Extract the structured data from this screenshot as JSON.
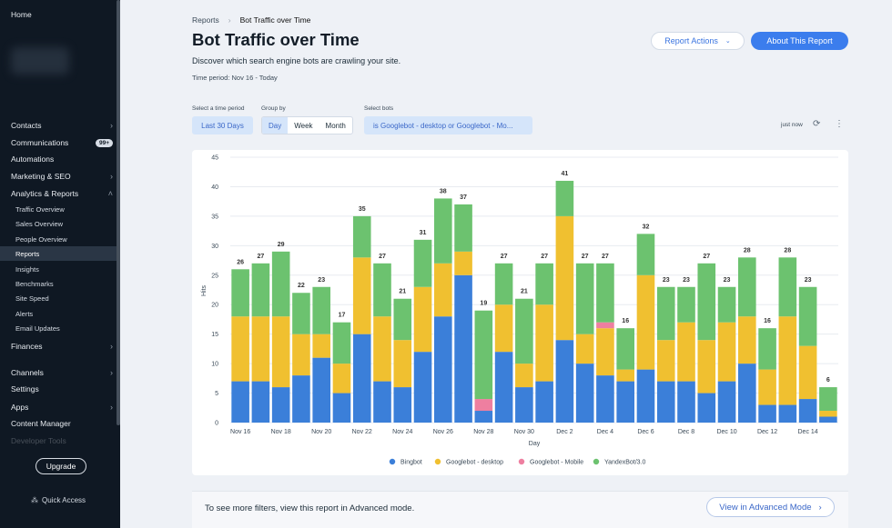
{
  "sidebar": {
    "home": "Home",
    "items": [
      {
        "label": "Contacts",
        "chevron": true
      },
      {
        "label": "Communications",
        "badge": "99+"
      },
      {
        "label": "Automations"
      },
      {
        "label": "Marketing & SEO",
        "chevron": true
      },
      {
        "label": "Analytics & Reports",
        "chevron": true,
        "expanded": true
      }
    ],
    "sub_items": [
      "Traffic Overview",
      "Sales Overview",
      "People Overview",
      "Reports",
      "Insights",
      "Benchmarks",
      "Site Speed",
      "Alerts",
      "Email Updates"
    ],
    "active_sub": "Reports",
    "items_after": [
      {
        "label": "Finances",
        "chevron": true
      },
      {
        "label": "Channels",
        "chevron": true
      },
      {
        "label": "Settings"
      },
      {
        "label": "Apps",
        "chevron": true
      },
      {
        "label": "Content Manager"
      },
      {
        "label": "Developer Tools"
      }
    ],
    "upgrade": "Upgrade",
    "quick_access": "Quick Access"
  },
  "breadcrumb": {
    "parent": "Reports",
    "current": "Bot Traffic over Time"
  },
  "header": {
    "title": "Bot Traffic over Time",
    "description": "Discover which search engine bots are crawling your site.",
    "period": "Time period: Nov 16 - Today",
    "report_actions": "Report Actions",
    "about": "About This Report"
  },
  "filters": {
    "time_label": "Select a time period",
    "time_value": "Last 30 Days",
    "group_label": "Group by",
    "group_options": [
      "Day",
      "Week",
      "Month"
    ],
    "group_selected": "Day",
    "bots_label": "Select bots",
    "bots_value": "is Googlebot - desktop or Googlebot - Mo...",
    "updated": "just now"
  },
  "chart_data": {
    "type": "bar",
    "stacked": true,
    "ylabel": "Hits",
    "xlabel": "Day",
    "ylim": [
      0,
      45
    ],
    "yticks": [
      0,
      5,
      10,
      15,
      20,
      25,
      30,
      35,
      40,
      45
    ],
    "categories": [
      "Nov 16",
      "Nov 17",
      "Nov 18",
      "Nov 19",
      "Nov 20",
      "Nov 21",
      "Nov 22",
      "Nov 23",
      "Nov 24",
      "Nov 25",
      "Nov 26",
      "Nov 27",
      "Nov 28",
      "Nov 29",
      "Nov 30",
      "Dec 1",
      "Dec 2",
      "Dec 3",
      "Dec 4",
      "Dec 5",
      "Dec 6",
      "Dec 7",
      "Dec 8",
      "Dec 9",
      "Dec 10",
      "Dec 11",
      "Dec 12",
      "Dec 13",
      "Dec 14",
      "Dec 15"
    ],
    "tick_labels": [
      "Nov 16",
      "Nov 18",
      "Nov 20",
      "Nov 22",
      "Nov 24",
      "Nov 26",
      "Nov 28",
      "Nov 30",
      "Dec 2",
      "Dec 4",
      "Dec 6",
      "Dec 8",
      "Dec 10",
      "Dec 12",
      "Dec 14"
    ],
    "totals": [
      26,
      27,
      29,
      22,
      23,
      17,
      35,
      27,
      21,
      31,
      38,
      37,
      19,
      27,
      21,
      27,
      41,
      27,
      27,
      16,
      32,
      23,
      23,
      27,
      23,
      28,
      16,
      28,
      23,
      6
    ],
    "series": [
      {
        "name": "Bingbot",
        "color": "#3b7fd9",
        "values": [
          7,
          7,
          6,
          8,
          11,
          5,
          15,
          7,
          6,
          12,
          18,
          25,
          2,
          12,
          6,
          7,
          14,
          10,
          8,
          7,
          9,
          7,
          7,
          5,
          7,
          10,
          3,
          3,
          4,
          1
        ]
      },
      {
        "name": "Googlebot - desktop",
        "color": "#f0c030",
        "values": [
          11,
          11,
          12,
          7,
          4,
          5,
          13,
          11,
          8,
          11,
          9,
          4,
          0,
          8,
          4,
          13,
          21,
          5,
          8,
          2,
          16,
          7,
          10,
          9,
          10,
          8,
          6,
          15,
          9,
          1
        ]
      },
      {
        "name": "Googlebot - Mobile",
        "color": "#ee7fa0",
        "values": [
          0,
          0,
          0,
          0,
          0,
          0,
          0,
          0,
          0,
          0,
          0,
          0,
          2,
          0,
          0,
          0,
          0,
          0,
          1,
          0,
          0,
          0,
          0,
          0,
          0,
          0,
          0,
          0,
          0,
          0
        ]
      },
      {
        "name": "YandexBot/3.0",
        "color": "#6cc26f",
        "values": [
          8,
          9,
          11,
          7,
          8,
          7,
          7,
          9,
          7,
          8,
          11,
          8,
          15,
          7,
          11,
          7,
          6,
          12,
          10,
          7,
          7,
          9,
          6,
          13,
          6,
          10,
          7,
          10,
          10,
          4
        ]
      }
    ],
    "legend_position": "bottom",
    "grid": "horizontal"
  },
  "footer": {
    "text": "To see more filters, view this report in Advanced mode.",
    "advanced_button": "View in Advanced Mode"
  }
}
